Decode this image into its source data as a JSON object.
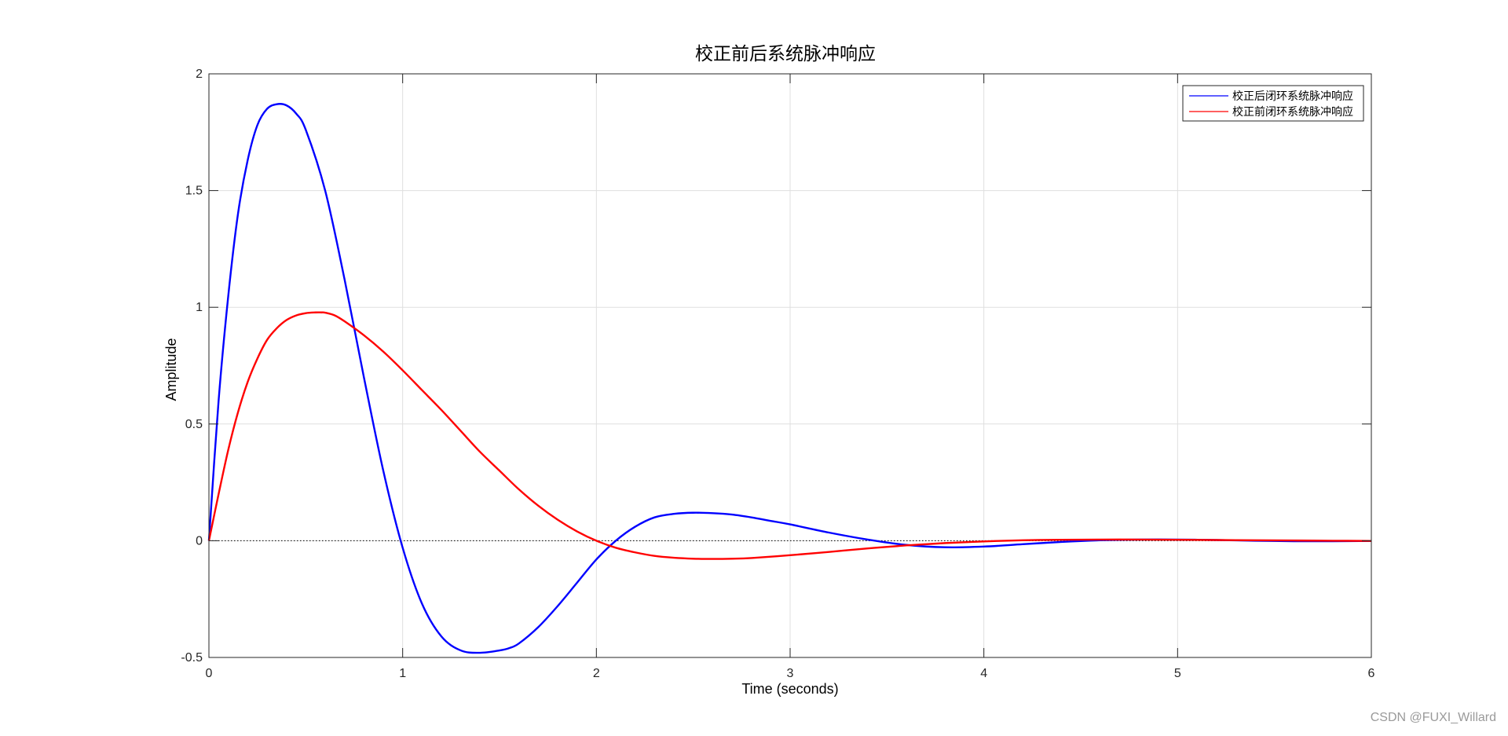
{
  "chart_data": {
    "type": "line",
    "title": "校正前后系统脉冲响应",
    "xlabel": "Time (seconds)",
    "ylabel": "Amplitude",
    "xlim": [
      0,
      6
    ],
    "ylim": [
      -0.5,
      2
    ],
    "xticks": [
      0,
      1,
      2,
      3,
      4,
      5,
      6
    ],
    "yticks": [
      -0.5,
      0,
      0.5,
      1,
      1.5,
      2
    ],
    "xtick_labels": [
      "0",
      "1",
      "2",
      "3",
      "4",
      "5",
      "6"
    ],
    "ytick_labels": [
      "-0.5",
      "0",
      "0.5",
      "1",
      "1.5",
      "2"
    ],
    "grid": true,
    "legend_position": "top-right",
    "zero_line": true,
    "series": [
      {
        "name": "校正后闭环系统脉冲响应",
        "color": "#0000ff",
        "x": [
          0,
          0.05,
          0.1,
          0.15,
          0.2,
          0.25,
          0.3,
          0.35,
          0.4,
          0.45,
          0.5,
          0.6,
          0.7,
          0.8,
          0.9,
          1.0,
          1.1,
          1.2,
          1.3,
          1.4,
          1.5,
          1.55,
          1.6,
          1.7,
          1.8,
          1.9,
          2.0,
          2.1,
          2.2,
          2.3,
          2.4,
          2.5,
          2.6,
          2.7,
          2.8,
          2.9,
          3.0,
          3.2,
          3.4,
          3.6,
          3.8,
          4.0,
          4.2,
          4.4,
          4.6,
          4.8,
          5.0,
          5.2,
          5.4,
          5.6,
          5.8,
          6.0
        ],
        "y": [
          0,
          0.6,
          1.05,
          1.4,
          1.63,
          1.78,
          1.85,
          1.87,
          1.865,
          1.83,
          1.76,
          1.5,
          1.12,
          0.7,
          0.3,
          -0.03,
          -0.27,
          -0.41,
          -0.47,
          -0.48,
          -0.47,
          -0.46,
          -0.44,
          -0.37,
          -0.28,
          -0.18,
          -0.08,
          0.0,
          0.06,
          0.1,
          0.115,
          0.12,
          0.118,
          0.112,
          0.1,
          0.085,
          0.07,
          0.035,
          0.005,
          -0.018,
          -0.028,
          -0.025,
          -0.015,
          -0.005,
          0.002,
          0.005,
          0.005,
          0.003,
          0.0,
          -0.002,
          -0.002,
          -0.001
        ]
      },
      {
        "name": "校正前闭环系统脉冲响应",
        "color": "#ff0000",
        "x": [
          0,
          0.05,
          0.1,
          0.15,
          0.2,
          0.25,
          0.3,
          0.35,
          0.4,
          0.45,
          0.5,
          0.55,
          0.58,
          0.6,
          0.65,
          0.7,
          0.8,
          0.9,
          1.0,
          1.1,
          1.2,
          1.3,
          1.4,
          1.5,
          1.6,
          1.7,
          1.8,
          1.9,
          2.0,
          2.1,
          2.2,
          2.3,
          2.4,
          2.5,
          2.6,
          2.7,
          2.8,
          3.0,
          3.2,
          3.4,
          3.6,
          3.8,
          4.0,
          4.2,
          4.4,
          4.6,
          4.8,
          5.0,
          5.2,
          5.4,
          5.6,
          5.8,
          6.0
        ],
        "y": [
          0,
          0.2,
          0.39,
          0.55,
          0.68,
          0.78,
          0.86,
          0.91,
          0.945,
          0.965,
          0.975,
          0.978,
          0.978,
          0.977,
          0.965,
          0.94,
          0.88,
          0.81,
          0.73,
          0.645,
          0.56,
          0.47,
          0.38,
          0.3,
          0.22,
          0.15,
          0.09,
          0.04,
          0.0,
          -0.03,
          -0.05,
          -0.065,
          -0.073,
          -0.077,
          -0.078,
          -0.077,
          -0.074,
          -0.062,
          -0.048,
          -0.033,
          -0.02,
          -0.01,
          -0.003,
          0.002,
          0.004,
          0.005,
          0.005,
          0.004,
          0.003,
          0.002,
          0.001,
          0.0,
          -0.001
        ]
      }
    ]
  },
  "watermark": "CSDN @FUXI_Willard"
}
